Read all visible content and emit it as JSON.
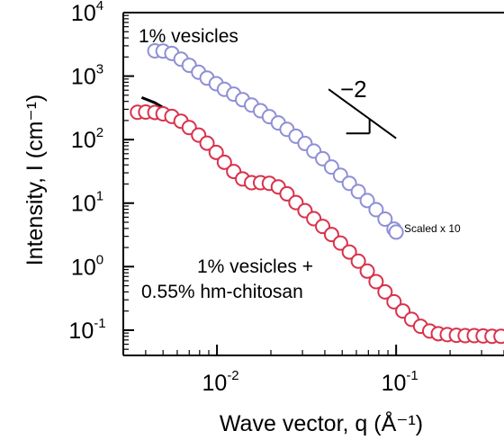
{
  "chart_data": {
    "type": "scatter",
    "x_scale": "log",
    "y_scale": "log",
    "xlabel": "Wave vector, q (Å⁻¹)",
    "ylabel": "Intensity, I (cm⁻¹)",
    "xlim": [
      0.003,
      0.4
    ],
    "ylim": [
      0.04,
      10000
    ],
    "x_ticks": [
      {
        "value": 0.01,
        "mantissa": "10",
        "exponent": "-2"
      },
      {
        "value": 0.1,
        "mantissa": "10",
        "exponent": "-1"
      }
    ],
    "y_ticks": [
      {
        "value": 0.1,
        "mantissa": "10",
        "exponent": "-1"
      },
      {
        "value": 1,
        "mantissa": "10",
        "exponent": "0"
      },
      {
        "value": 10,
        "mantissa": "10",
        "exponent": "1"
      },
      {
        "value": 100,
        "mantissa": "10",
        "exponent": "2"
      },
      {
        "value": 1000,
        "mantissa": "10",
        "exponent": "3"
      },
      {
        "value": 10000,
        "mantissa": "10",
        "exponent": "4"
      }
    ],
    "grid": false,
    "series": [
      {
        "name": "1% vesicles",
        "marker": "open-circle",
        "color": "#8f8fd6",
        "scale_note": "Scaled x 10",
        "points": [
          [
            0.0045,
            2500
          ],
          [
            0.005,
            2480
          ],
          [
            0.0056,
            2280
          ],
          [
            0.0063,
            1850
          ],
          [
            0.007,
            1480
          ],
          [
            0.0079,
            1150
          ],
          [
            0.0088,
            930
          ],
          [
            0.0099,
            760
          ],
          [
            0.011,
            620
          ],
          [
            0.0124,
            520
          ],
          [
            0.0139,
            425
          ],
          [
            0.0156,
            350
          ],
          [
            0.0175,
            285
          ],
          [
            0.0196,
            230
          ],
          [
            0.022,
            183
          ],
          [
            0.0246,
            145
          ],
          [
            0.0276,
            113
          ],
          [
            0.031,
            87
          ],
          [
            0.0347,
            66
          ],
          [
            0.0389,
            50
          ],
          [
            0.0436,
            37
          ],
          [
            0.0489,
            27.5
          ],
          [
            0.0548,
            20.5
          ],
          [
            0.0615,
            15.2
          ],
          [
            0.069,
            11
          ],
          [
            0.0773,
            7.9
          ],
          [
            0.0867,
            5.6
          ],
          [
            0.0973,
            3.9
          ],
          [
            0.1,
            3.5
          ]
        ],
        "fit": [
          [
            0.0042,
            2620
          ],
          [
            0.005,
            2450
          ],
          [
            0.006,
            1900
          ],
          [
            0.007,
            1450
          ],
          [
            0.008,
            1130
          ],
          [
            0.01,
            770
          ],
          [
            0.012,
            560
          ],
          [
            0.015,
            375
          ],
          [
            0.02,
            220
          ],
          [
            0.025,
            140
          ],
          [
            0.03,
            93
          ],
          [
            0.04,
            46
          ],
          [
            0.05,
            26.5
          ],
          [
            0.06,
            16.5
          ],
          [
            0.07,
            10.8
          ],
          [
            0.08,
            7.3
          ],
          [
            0.09,
            5.1
          ],
          [
            0.1,
            3.7
          ]
        ]
      },
      {
        "name": "1% vesicles + 0.55% hm-chitosan",
        "marker": "open-circle",
        "color": "#d9324c",
        "points": [
          [
            0.0036,
            270
          ],
          [
            0.004,
            272
          ],
          [
            0.0045,
            268
          ],
          [
            0.005,
            255
          ],
          [
            0.0056,
            232
          ],
          [
            0.0063,
            195
          ],
          [
            0.007,
            155
          ],
          [
            0.0079,
            118
          ],
          [
            0.0088,
            88
          ],
          [
            0.0099,
            63
          ],
          [
            0.011,
            44
          ],
          [
            0.0124,
            31.5
          ],
          [
            0.0139,
            24
          ],
          [
            0.0156,
            21
          ],
          [
            0.0175,
            21
          ],
          [
            0.0196,
            20.5
          ],
          [
            0.022,
            18
          ],
          [
            0.0246,
            14
          ],
          [
            0.0276,
            10.2
          ],
          [
            0.031,
            7.6
          ],
          [
            0.0347,
            5.7
          ],
          [
            0.0389,
            4.3
          ],
          [
            0.0436,
            3.2
          ],
          [
            0.0489,
            2.35
          ],
          [
            0.0548,
            1.7
          ],
          [
            0.0615,
            1.22
          ],
          [
            0.069,
            0.85
          ],
          [
            0.0773,
            0.58
          ],
          [
            0.0867,
            0.4
          ],
          [
            0.0973,
            0.28
          ],
          [
            0.109,
            0.2
          ],
          [
            0.122,
            0.148
          ],
          [
            0.137,
            0.115
          ],
          [
            0.154,
            0.097
          ],
          [
            0.172,
            0.088
          ],
          [
            0.193,
            0.085
          ],
          [
            0.217,
            0.083
          ],
          [
            0.243,
            0.082
          ],
          [
            0.273,
            0.082
          ],
          [
            0.306,
            0.081
          ],
          [
            0.343,
            0.08
          ],
          [
            0.385,
            0.08
          ]
        ],
        "fit": [
          [
            0.0038,
            460
          ],
          [
            0.0045,
            380
          ],
          [
            0.005,
            320
          ],
          [
            0.006,
            220
          ],
          [
            0.007,
            150
          ],
          [
            0.008,
            102
          ],
          [
            0.009,
            72
          ],
          [
            0.01,
            52
          ],
          [
            0.011,
            39
          ],
          [
            0.012,
            31
          ],
          [
            0.013,
            26
          ],
          [
            0.014,
            22.5
          ],
          [
            0.016,
            20.5
          ],
          [
            0.018,
            20.8
          ],
          [
            0.02,
            20
          ],
          [
            0.022,
            17.5
          ],
          [
            0.025,
            13.5
          ],
          [
            0.03,
            8.3
          ],
          [
            0.035,
            5.6
          ],
          [
            0.04,
            4
          ],
          [
            0.05,
            2.25
          ],
          [
            0.06,
            1.35
          ],
          [
            0.07,
            0.82
          ],
          [
            0.08,
            0.52
          ],
          [
            0.09,
            0.34
          ],
          [
            0.1,
            0.23
          ],
          [
            0.12,
            0.138
          ],
          [
            0.14,
            0.1
          ],
          [
            0.16,
            0.088
          ],
          [
            0.2,
            0.082
          ],
          [
            0.3,
            0.08
          ],
          [
            0.4,
            0.079
          ]
        ]
      }
    ],
    "annotations": {
      "series1_label": "1% vesicles",
      "series1_scale": "Scaled x 10",
      "series2_label_line1": "1% vesicles +",
      "series2_label_line2": "0.55% hm-chitosan",
      "slope_label": "−2"
    },
    "slope_triangle": {
      "slope": -2,
      "from": [
        0.042,
        620
      ],
      "to": [
        0.1,
        105
      ]
    }
  }
}
